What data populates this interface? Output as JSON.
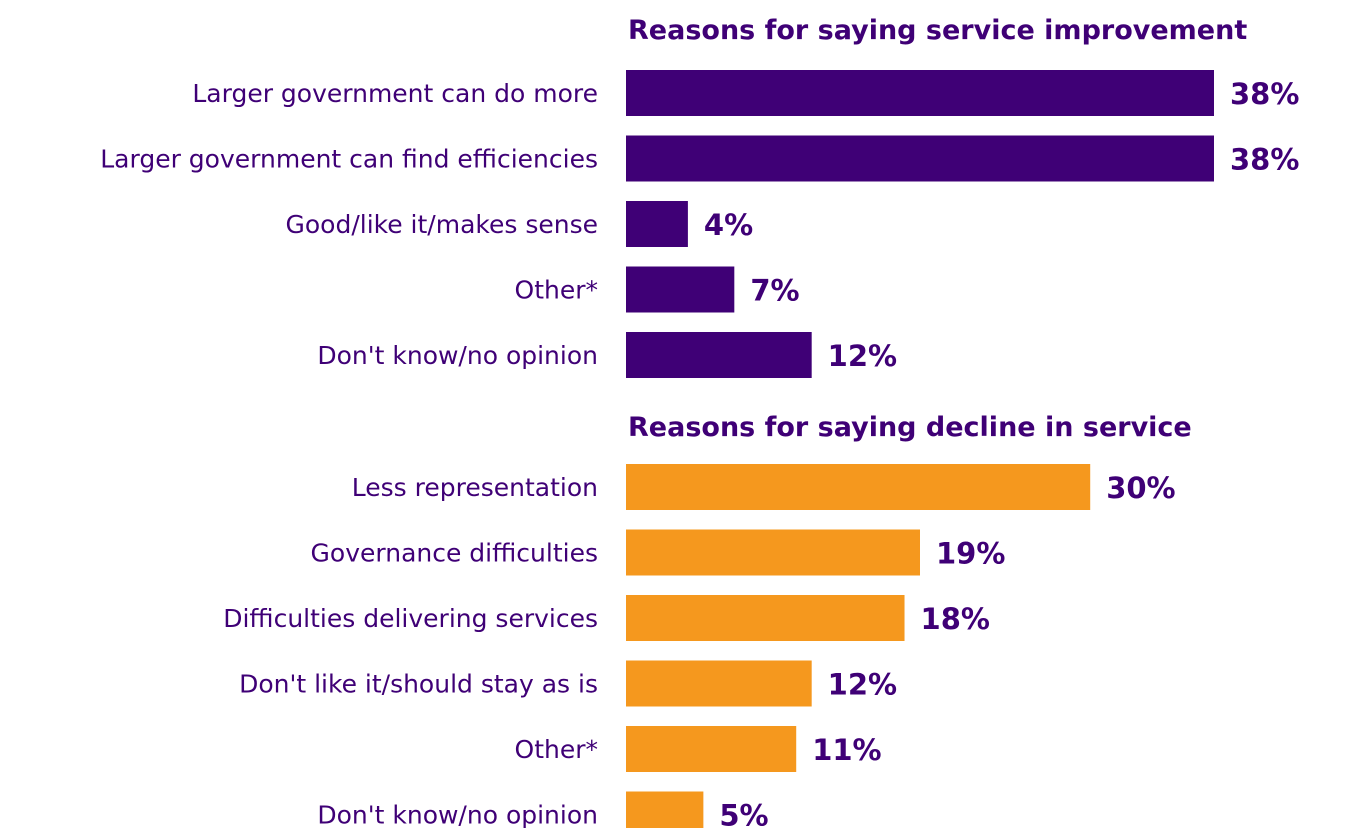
{
  "chart_data": [
    {
      "type": "bar",
      "orientation": "horizontal",
      "title": "Reasons for saying service improvement",
      "categories": [
        "Larger government can do more",
        "Larger government can find efficiencies",
        "Good/like it/makes sense",
        "Other*",
        "Don't know/no opinion"
      ],
      "values": [
        38,
        38,
        4,
        7,
        12
      ],
      "value_labels": [
        "38%",
        "38%",
        "4%",
        "7%",
        "12%"
      ],
      "unit": "%",
      "color": "#3f0076",
      "xlim": [
        0,
        38
      ],
      "grid": false
    },
    {
      "type": "bar",
      "orientation": "horizontal",
      "title": "Reasons for saying decline in service",
      "categories": [
        "Less representation",
        "Governance difficulties",
        "Difficulties delivering services",
        "Don't like it/should stay as is",
        "Other*",
        "Don't know/no opinion"
      ],
      "values": [
        30,
        19,
        18,
        12,
        11,
        5
      ],
      "value_labels": [
        "30%",
        "19%",
        "18%",
        "12%",
        "11%",
        "5%"
      ],
      "unit": "%",
      "color": "#f5981e",
      "xlim": [
        0,
        38
      ],
      "grid": false
    }
  ],
  "colors": {
    "text": "#3f0076",
    "improvement_bar": "#3f0076",
    "decline_bar": "#f5981e"
  }
}
